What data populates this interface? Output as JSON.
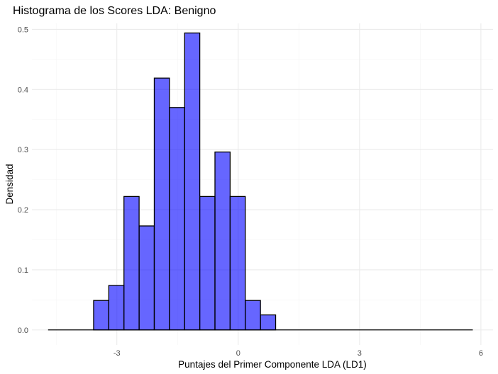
{
  "chart_data": {
    "type": "bar",
    "title": "Histograma de los Scores LDA: Benigno",
    "xlabel": "Puntajes del Primer Componente LDA (LD1)",
    "ylabel": "Densidad",
    "xlim": [
      -5.1,
      6.3
    ],
    "ylim": [
      -0.025,
      0.51
    ],
    "x_ticks": [
      -3,
      0,
      3,
      6
    ],
    "x_tick_labels": [
      "-3",
      "0",
      "3",
      "6"
    ],
    "y_ticks": [
      0.0,
      0.1,
      0.2,
      0.3,
      0.4,
      0.5
    ],
    "y_tick_labels": [
      "0.0",
      "0.1",
      "0.2",
      "0.3",
      "0.4",
      "0.5"
    ],
    "grid": true,
    "bin_width": 0.375,
    "bins_start": -4.7,
    "bins_end": 5.8,
    "bars": [
      {
        "x0": -3.575,
        "x1": -3.2,
        "value": 0.049
      },
      {
        "x0": -3.2,
        "x1": -2.825,
        "value": 0.074
      },
      {
        "x0": -2.825,
        "x1": -2.45,
        "value": 0.222
      },
      {
        "x0": -2.45,
        "x1": -2.075,
        "value": 0.173
      },
      {
        "x0": -2.075,
        "x1": -1.7,
        "value": 0.419
      },
      {
        "x0": -1.7,
        "x1": -1.325,
        "value": 0.37
      },
      {
        "x0": -1.325,
        "x1": -0.95,
        "value": 0.494
      },
      {
        "x0": -0.95,
        "x1": -0.575,
        "value": 0.222
      },
      {
        "x0": -0.575,
        "x1": -0.2,
        "value": 0.296
      },
      {
        "x0": -0.2,
        "x1": 0.175,
        "value": 0.222
      },
      {
        "x0": 0.175,
        "x1": 0.55,
        "value": 0.049
      },
      {
        "x0": 0.55,
        "x1": 0.925,
        "value": 0.025
      }
    ],
    "bar_fill": "#0000ff",
    "bar_fill_opacity": 0.6,
    "bar_stroke": "#000000",
    "grid_major_color": "#ebebeb",
    "grid_minor_color": "#f4f4f4"
  }
}
